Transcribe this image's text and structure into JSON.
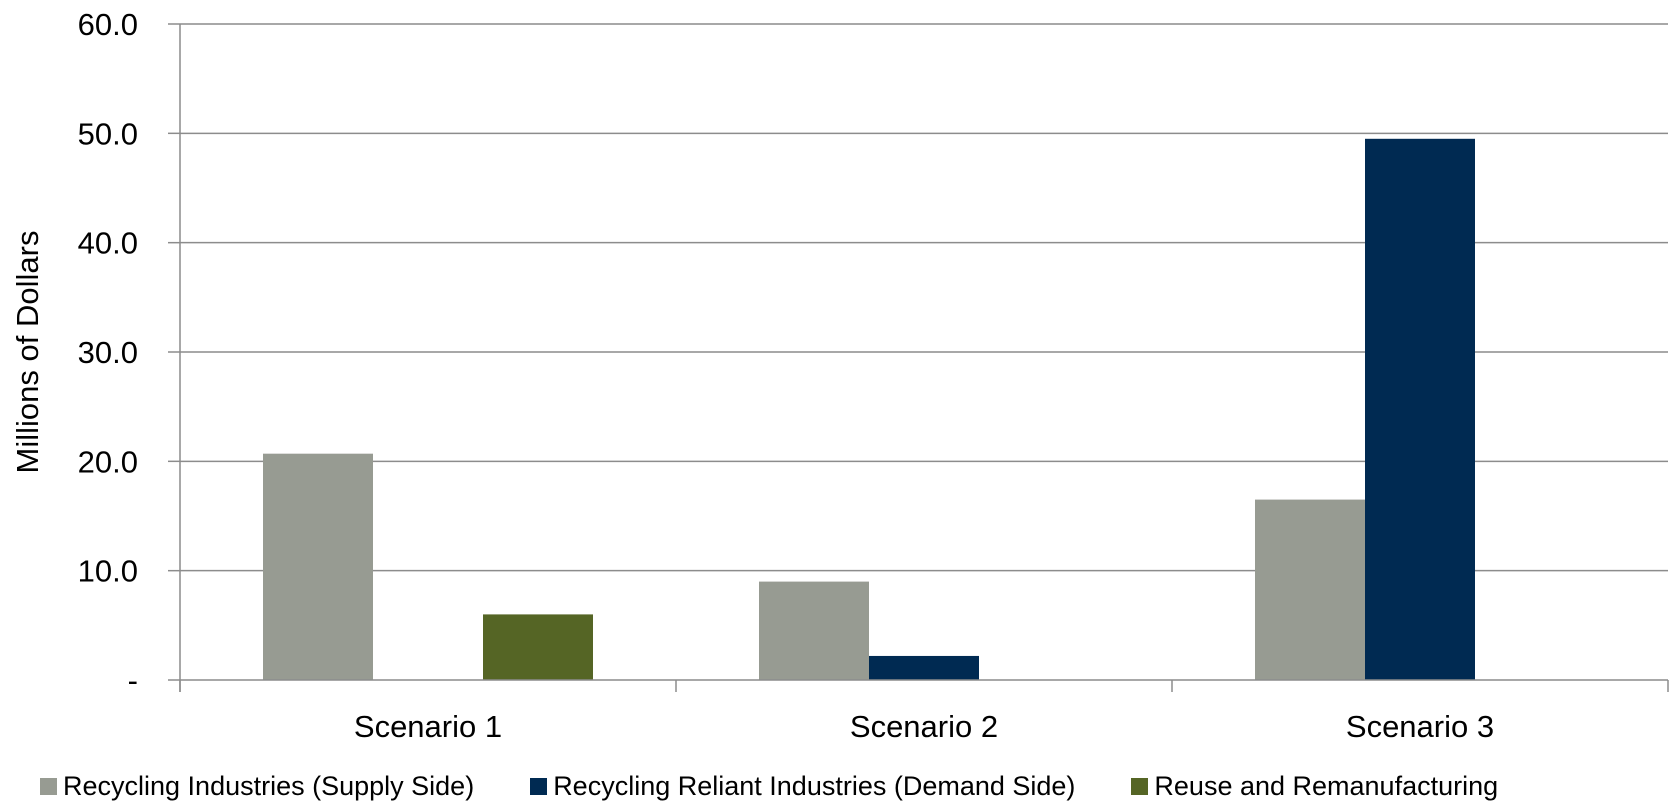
{
  "chart_data": {
    "type": "bar",
    "title": "",
    "xlabel": "",
    "ylabel": "Millions of Dollars",
    "categories": [
      "Scenario 1",
      "Scenario 2",
      "Scenario 3"
    ],
    "series": [
      {
        "name": "Recycling Industries (Supply Side)",
        "color": "#979b92",
        "values": [
          20.7,
          9.0,
          16.5
        ]
      },
      {
        "name": "Recycling Reliant Industries (Demand Side)",
        "color": "#002a52",
        "values": [
          0,
          2.2,
          49.5
        ]
      },
      {
        "name": "Reuse and Remanufacturing",
        "color": "#556525",
        "values": [
          6.0,
          0,
          0
        ]
      }
    ],
    "ylim": [
      0,
      60
    ],
    "yticks": [
      0,
      10,
      20,
      30,
      40,
      50,
      60
    ],
    "ytick_labels": [
      "-",
      "10.0",
      "20.0",
      "30.0",
      "40.0",
      "50.0",
      "60.0"
    ],
    "grid": true,
    "legend_position": "bottom"
  }
}
